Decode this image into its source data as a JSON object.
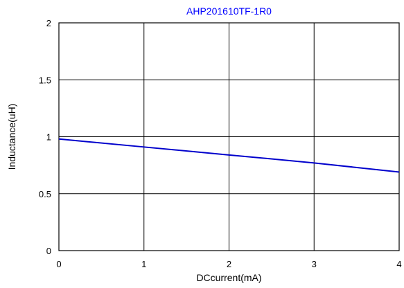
{
  "chart_data": {
    "type": "line",
    "title": "AHP201610TF-1R0",
    "xlabel": "DCcurrent(mA)",
    "ylabel": "Inductance(uH)",
    "xlim": [
      0,
      4
    ],
    "ylim": [
      0,
      2
    ],
    "x_ticks": [
      "0",
      "1",
      "2",
      "3",
      "4"
    ],
    "y_ticks": [
      "0",
      "0.5",
      "1",
      "1.5",
      "2"
    ],
    "grid": true,
    "series": [
      {
        "color": "#0000cc",
        "x": [
          0,
          1,
          2,
          3,
          4
        ],
        "y": [
          0.98,
          0.91,
          0.84,
          0.77,
          0.69
        ]
      }
    ],
    "colors": {
      "title": "#0000ff",
      "line": "#0000cc",
      "grid": "#000000"
    }
  }
}
